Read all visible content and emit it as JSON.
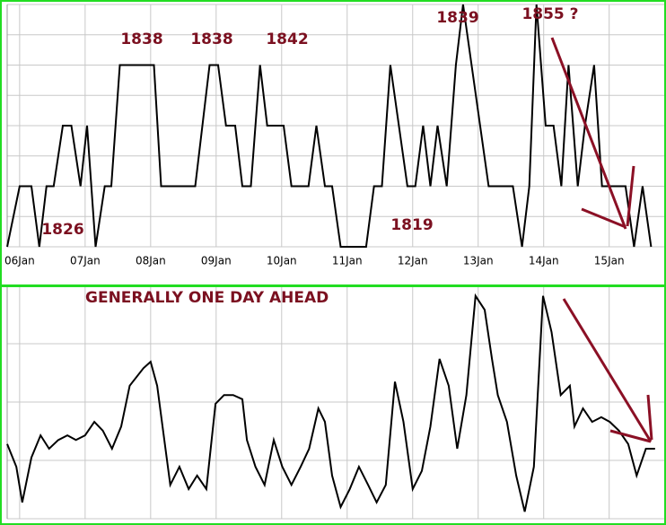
{
  "chart_data": [
    {
      "type": "line",
      "color": "#000000",
      "x": [
        5.81,
        6.0,
        6.18,
        6.3,
        6.41,
        6.52,
        6.66,
        6.79,
        6.93,
        7.03,
        7.16,
        7.3,
        7.4,
        7.53,
        8.05,
        8.16,
        8.68,
        8.9,
        9.03,
        9.15,
        9.29,
        9.4,
        9.53,
        9.67,
        9.78,
        10.03,
        10.15,
        10.41,
        10.53,
        10.66,
        10.77,
        10.9,
        11.29,
        11.41,
        11.53,
        11.66,
        11.92,
        12.04,
        12.16,
        12.27,
        12.38,
        12.52,
        12.66,
        12.77,
        12.9,
        13.16,
        13.53,
        13.67,
        13.78,
        13.89,
        14.03,
        14.15,
        14.27,
        14.38,
        14.52,
        14.63,
        14.77,
        14.89,
        15.25,
        15.38,
        15.51,
        15.64
      ],
      "values": [
        0,
        2,
        2,
        0,
        2,
        2,
        4,
        4,
        2,
        4,
        0,
        2,
        2,
        6,
        6,
        2,
        2,
        6,
        6,
        4,
        4,
        2,
        2,
        6,
        4,
        4,
        2,
        2,
        4,
        2,
        2,
        0,
        0,
        2,
        2,
        6,
        2,
        2,
        4,
        2,
        4,
        2,
        6,
        8,
        6,
        2,
        2,
        0,
        2,
        8,
        4,
        4,
        2,
        6,
        2,
        4,
        6,
        2,
        2,
        0,
        2,
        0
      ],
      "xlim": [
        5.81,
        15.84
      ],
      "ylim": [
        0,
        8
      ],
      "xticks": [
        {
          "value": 6,
          "label": "06Jan"
        },
        {
          "value": 7,
          "label": "07Jan"
        },
        {
          "value": 8,
          "label": "08Jan"
        },
        {
          "value": 9,
          "label": "09Jan"
        },
        {
          "value": 10,
          "label": "10Jan"
        },
        {
          "value": 11,
          "label": "11Jan"
        },
        {
          "value": 12,
          "label": "12Jan"
        },
        {
          "value": 13,
          "label": "13Jan"
        },
        {
          "value": 14,
          "label": "14Jan"
        },
        {
          "value": 15,
          "label": "15Jan"
        }
      ],
      "yticks": [
        0,
        1,
        2,
        3,
        4,
        5,
        6,
        7,
        8
      ],
      "grid": true,
      "annotations": [
        "1826",
        "1838",
        "1838",
        "1842",
        "1819",
        "1839",
        "1855 ?"
      ]
    },
    {
      "type": "line",
      "color": "#000000",
      "title": "GENERALLY ONE DAY AHEAD",
      "x": [
        5.81,
        5.95,
        6.04,
        6.18,
        6.32,
        6.45,
        6.59,
        6.73,
        6.86,
        7.0,
        7.14,
        7.27,
        7.41,
        7.55,
        7.68,
        7.89,
        8.0,
        8.1,
        8.19,
        8.3,
        8.44,
        8.58,
        8.71,
        8.85,
        8.99,
        9.12,
        9.26,
        9.4,
        9.47,
        9.6,
        9.74,
        9.88,
        10.01,
        10.15,
        10.29,
        10.42,
        10.56,
        10.66,
        10.77,
        10.9,
        11.04,
        11.18,
        11.32,
        11.45,
        11.59,
        11.73,
        11.86,
        12.0,
        12.14,
        12.27,
        12.41,
        12.55,
        12.68,
        12.82,
        12.96,
        13.1,
        13.21,
        13.3,
        13.44,
        13.58,
        13.71,
        13.85,
        13.99,
        14.12,
        14.26,
        14.4,
        14.47,
        14.6,
        14.74,
        14.88,
        15.01,
        15.15,
        15.29,
        15.42,
        15.56,
        15.7
      ],
      "values": [
        1.28,
        0.89,
        0.28,
        1.05,
        1.43,
        1.2,
        1.35,
        1.43,
        1.35,
        1.43,
        1.66,
        1.51,
        1.2,
        1.58,
        2.28,
        2.58,
        2.69,
        2.28,
        1.51,
        0.58,
        0.89,
        0.51,
        0.74,
        0.51,
        1.97,
        2.12,
        2.12,
        2.05,
        1.35,
        0.89,
        0.58,
        1.35,
        0.89,
        0.58,
        0.89,
        1.2,
        1.89,
        1.66,
        0.74,
        0.2,
        0.51,
        0.89,
        0.58,
        0.28,
        0.58,
        2.35,
        1.66,
        0.51,
        0.82,
        1.58,
        2.74,
        2.28,
        1.2,
        2.12,
        3.82,
        3.58,
        2.74,
        2.12,
        1.66,
        0.74,
        0.12,
        0.89,
        3.82,
        3.2,
        2.12,
        2.28,
        1.58,
        1.89,
        1.66,
        1.74,
        1.66,
        1.51,
        1.28,
        0.74,
        1.2,
        1.2
      ],
      "xlim": [
        5.81,
        15.84
      ],
      "ylim": [
        0,
        4
      ],
      "xticks": [
        6,
        7,
        8,
        9,
        10,
        11,
        12,
        13,
        14,
        15
      ],
      "yticks": [
        0,
        1,
        2,
        3,
        4
      ],
      "grid": true
    }
  ]
}
